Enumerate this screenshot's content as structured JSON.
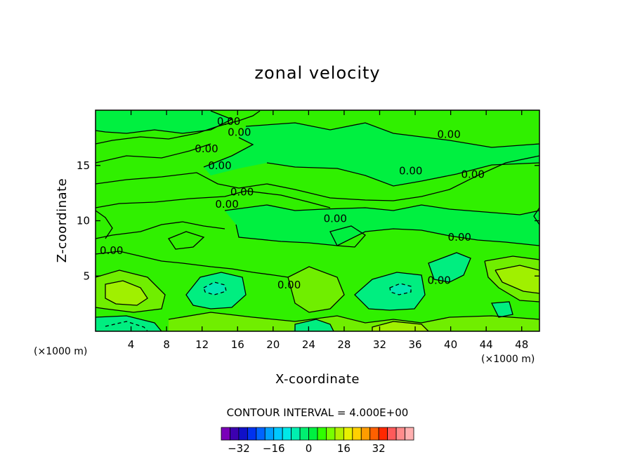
{
  "chart_data": {
    "type": "contour",
    "title": "zonal velocity",
    "xlabel": "X-coordinate",
    "ylabel": "Z-coordinate",
    "x_unit": "(×1000 m)",
    "y_unit": "(×1000 m)",
    "xlim": [
      0,
      50
    ],
    "ylim": [
      0,
      20
    ],
    "x_ticks": [
      4,
      8,
      12,
      16,
      20,
      24,
      28,
      32,
      36,
      40,
      44,
      48
    ],
    "y_ticks": [
      5,
      10,
      15
    ],
    "contour_interval_text": "CONTOUR INTERVAL = 4.000E+00",
    "contour_labels": [
      {
        "text": "0.00",
        "x": 15.0,
        "y": 19.0
      },
      {
        "text": "0.00",
        "x": 16.2,
        "y": 18.0
      },
      {
        "text": "0.00",
        "x": 12.5,
        "y": 16.5
      },
      {
        "text": "0.00",
        "x": 14.0,
        "y": 15.0
      },
      {
        "text": "0.00",
        "x": 16.5,
        "y": 12.6
      },
      {
        "text": "0.00",
        "x": 14.8,
        "y": 11.5
      },
      {
        "text": "0.00",
        "x": 27.0,
        "y": 10.2
      },
      {
        "text": "0.00",
        "x": 39.8,
        "y": 17.8
      },
      {
        "text": "0.00",
        "x": 35.5,
        "y": 14.5
      },
      {
        "text": "0.00",
        "x": 42.5,
        "y": 14.2
      },
      {
        "text": "0.00",
        "x": 41.0,
        "y": 8.5
      },
      {
        "text": "0.00",
        "x": 1.8,
        "y": 7.3
      },
      {
        "text": "0.00",
        "x": 21.8,
        "y": 4.2
      },
      {
        "text": "0.00",
        "x": 38.7,
        "y": 4.6
      }
    ],
    "colorbar": {
      "colors": [
        "#7a00b8",
        "#3c00b0",
        "#1010c8",
        "#0032f0",
        "#0064ff",
        "#00a0ff",
        "#00c8ff",
        "#00e8e8",
        "#00f0b0",
        "#00ee70",
        "#00f040",
        "#30ff00",
        "#78ff00",
        "#b4f000",
        "#e8f000",
        "#ffd000",
        "#ff9c00",
        "#ff6000",
        "#ff2800",
        "#ff5a5a",
        "#ff8c8c",
        "#ffb0b0"
      ],
      "tick_labels": [
        "−32",
        "−16",
        "0",
        "16",
        "32"
      ],
      "tick_values": [
        -32,
        -16,
        0,
        16,
        32
      ],
      "value_range": [
        -40,
        48
      ]
    },
    "field_colors": {
      "near_zero": "#30f000",
      "slight_pos": "#70ee00",
      "moderate_pos": "#a0f000",
      "strong_pos": "#c8f000",
      "slight_neg": "#00f040",
      "moderate_neg": "#00ee80",
      "strong_neg": "#00e8b0"
    }
  }
}
